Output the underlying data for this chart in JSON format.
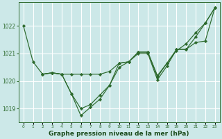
{
  "bg_color": "#cce8e8",
  "grid_color": "#ffffff",
  "line_color": "#2d6a2d",
  "marker_color": "#2d6a2d",
  "xlabel": "Graphe pression niveau de la mer (hPa)",
  "xlabel_color": "#1a4a1a",
  "ylim": [
    1018.5,
    1022.85
  ],
  "yticks": [
    1019,
    1020,
    1021,
    1022
  ],
  "tick_labels": [
    "0",
    "1",
    "2",
    "3",
    "4",
    "5",
    "6",
    "7",
    "8",
    "9",
    "10",
    "11",
    "12",
    "13",
    "14",
    "18",
    "19",
    "20",
    "21",
    "22",
    "23"
  ],
  "series": [
    {
      "xi": [
        0,
        1,
        2,
        3,
        4,
        5,
        6,
        7,
        8,
        9,
        10,
        11,
        12,
        13,
        14,
        15,
        16,
        17,
        18,
        19,
        20
      ],
      "y": [
        1022.0,
        1020.7,
        1020.25,
        1020.3,
        1020.25,
        1020.25,
        1020.25,
        1020.25,
        1020.25,
        1020.35,
        1020.65,
        1020.7,
        1021.05,
        1021.05,
        1020.2,
        1020.65,
        1021.1,
        1021.35,
        1021.75,
        1022.1,
        1022.65
      ]
    },
    {
      "xi": [
        2,
        3,
        4,
        5,
        6,
        7,
        8,
        9,
        10,
        11,
        12,
        13,
        14,
        15,
        16,
        17,
        18,
        19,
        20
      ],
      "y": [
        1020.25,
        1020.3,
        1020.25,
        1019.55,
        1019.0,
        1019.15,
        1019.5,
        1019.85,
        1020.65,
        1020.7,
        1021.05,
        1021.05,
        1020.15,
        1020.65,
        1021.15,
        1021.15,
        1021.6,
        1022.1,
        1022.65
      ]
    },
    {
      "xi": [
        2,
        3,
        4,
        5,
        6,
        7,
        8,
        9,
        10,
        11,
        12,
        13,
        14,
        15,
        16,
        17,
        18,
        19,
        20
      ],
      "y": [
        1020.25,
        1020.3,
        1020.25,
        1019.55,
        1018.75,
        1019.05,
        1019.35,
        1019.85,
        1020.5,
        1020.7,
        1021.0,
        1021.0,
        1020.05,
        1020.55,
        1021.15,
        1021.15,
        1021.4,
        1021.45,
        1022.65
      ]
    }
  ]
}
